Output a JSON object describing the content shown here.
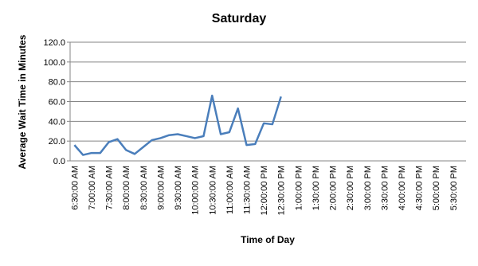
{
  "chart_data": {
    "type": "line",
    "title": "Saturday",
    "y_label": "Average Wait Time in Minutes",
    "x_label": "Time of Day",
    "categories": [
      "6:30:00 AM",
      null,
      "7:00:00 AM",
      null,
      "7:30:00 AM",
      null,
      "8:00:00 AM",
      null,
      "8:30:00 AM",
      null,
      "9:00:00 AM",
      null,
      "9:30:00 AM",
      null,
      "10:00:00 AM",
      null,
      "10:30:00 AM",
      null,
      "11:00:00 AM",
      null,
      "11:30:00 AM",
      null,
      "12:00:00 PM",
      null,
      "12:30:00 PM",
      null,
      "1:00:00 PM",
      null,
      "1:30:00 PM",
      null,
      "2:00:00 PM",
      null,
      "2:30:00 PM",
      null,
      "3:00:00 PM",
      null,
      "3:30:00 PM",
      null,
      "4:00:00 PM",
      null,
      "4:30:00 PM",
      null,
      "5:00:00 PM",
      null,
      "5:30:00 PM",
      null
    ],
    "values": [
      16,
      6,
      8,
      8,
      19,
      22,
      11,
      7,
      14,
      21,
      23,
      26,
      27,
      25,
      23,
      25,
      66,
      27,
      29,
      53,
      16,
      17,
      38,
      37,
      65,
      null,
      null,
      null,
      null,
      null,
      null,
      null,
      null,
      null,
      null,
      null,
      null,
      null,
      null,
      null,
      null,
      null,
      null,
      null,
      null,
      null
    ],
    "color": "#4a7ebb",
    "ylim": [
      0,
      120
    ],
    "yticks": [
      {
        "value": 0,
        "label": "0.0"
      },
      {
        "value": 20,
        "label": "20.0"
      },
      {
        "value": 40,
        "label": "40.0"
      },
      {
        "value": 60,
        "label": "60.0"
      },
      {
        "value": 80,
        "label": "80.0"
      },
      {
        "value": 100,
        "label": "100.0"
      },
      {
        "value": 120,
        "label": "120.0"
      }
    ],
    "grid": true
  }
}
